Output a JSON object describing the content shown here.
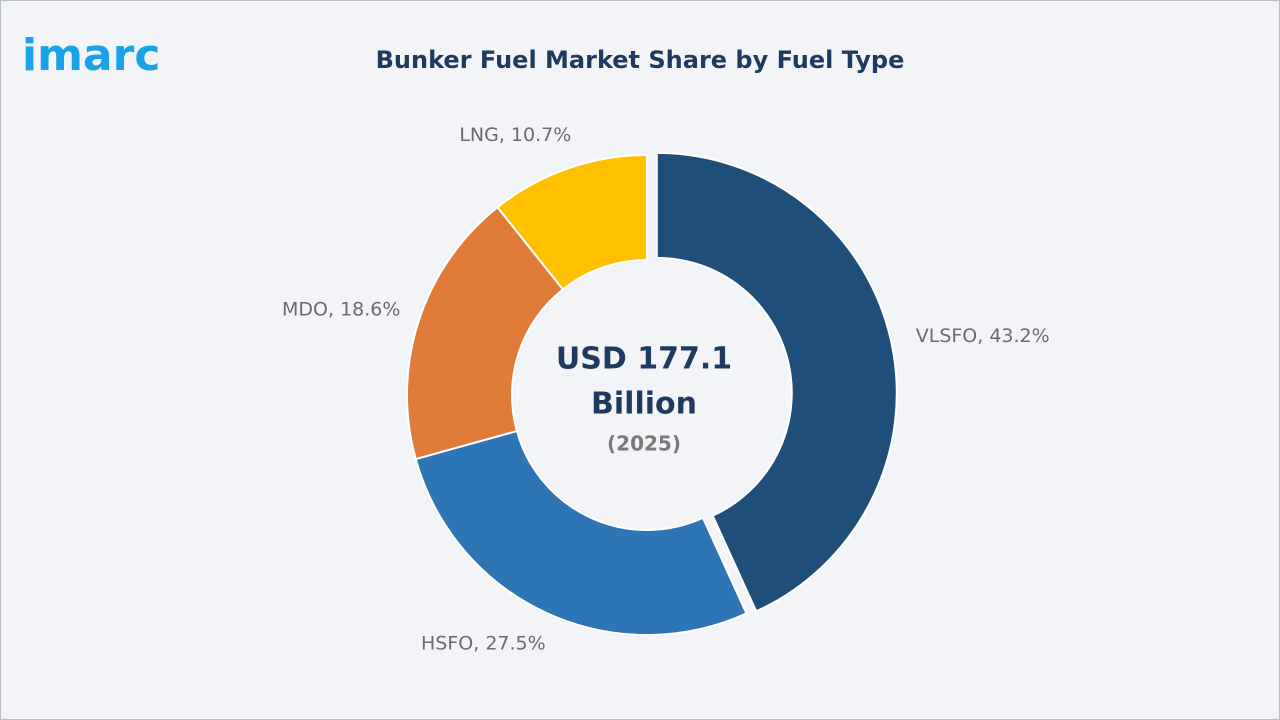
{
  "logo": "imarc",
  "chart_data": {
    "type": "donut",
    "title": "Bunker Fuel Market Share by Fuel Type",
    "values": [
      43.2,
      27.5,
      18.6,
      10.7
    ],
    "value_labels": [
      "VLSFO, 43.2%",
      "HSFO, 27.5%",
      "MDO, 18.6%",
      "LNG, 10.7%"
    ],
    "colors": [
      "#1f4e79",
      "#2e75b6",
      "#e07b39",
      "#ffc000"
    ],
    "center_label": [
      "USD 177.1",
      "Billion"
    ],
    "center_sublabel": "(2025)"
  }
}
